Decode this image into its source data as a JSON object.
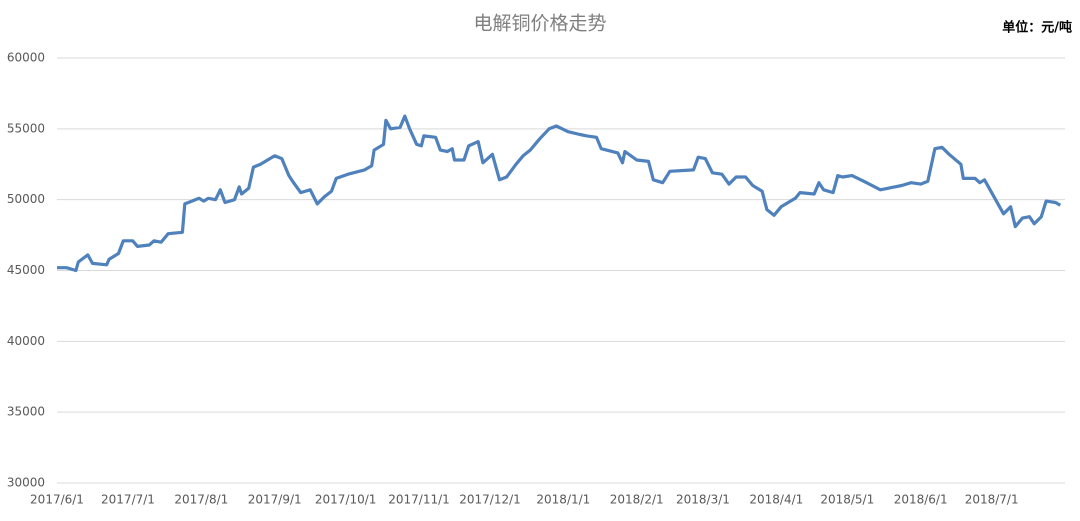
{
  "chart_data": {
    "type": "line",
    "title": "电解铜价格走势",
    "annotation": "单位：元/吨",
    "x": [
      "2017/6/1",
      "2017/6/5",
      "2017/6/9",
      "2017/6/10",
      "2017/6/14",
      "2017/6/16",
      "2017/6/22",
      "2017/6/23",
      "2017/6/27",
      "2017/6/29",
      "2017/7/3",
      "2017/7/5",
      "2017/7/10",
      "2017/7/12",
      "2017/7/15",
      "2017/7/18",
      "2017/7/24",
      "2017/7/25",
      "2017/7/28",
      "2017/7/31",
      "2017/8/2",
      "2017/8/4",
      "2017/8/7",
      "2017/8/9",
      "2017/8/11",
      "2017/8/15",
      "2017/8/17",
      "2017/8/18",
      "2017/8/21",
      "2017/8/23",
      "2017/8/26",
      "2017/8/29",
      "2017/9/1",
      "2017/9/4",
      "2017/9/7",
      "2017/9/9",
      "2017/9/12",
      "2017/9/16",
      "2017/9/19",
      "2017/9/22",
      "2017/9/25",
      "2017/9/27",
      "2017/10/2",
      "2017/10/9",
      "2017/10/12",
      "2017/10/13",
      "2017/10/17",
      "2017/10/18",
      "2017/10/20",
      "2017/10/24",
      "2017/10/26",
      "2017/10/28",
      "2017/10/31",
      "2017/11/2",
      "2017/11/3",
      "2017/11/8",
      "2017/11/10",
      "2017/11/13",
      "2017/11/15",
      "2017/11/16",
      "2017/11/20",
      "2017/11/22",
      "2017/11/26",
      "2017/11/28",
      "2017/12/2",
      "2017/12/5",
      "2017/12/8",
      "2017/12/12",
      "2017/12/15",
      "2017/12/18",
      "2017/12/22",
      "2017/12/26",
      "2017/12/29",
      "2018/1/3",
      "2018/1/8",
      "2018/1/11",
      "2018/1/15",
      "2018/1/17",
      "2018/1/24",
      "2018/1/26",
      "2018/1/27",
      "2018/2/1",
      "2018/2/6",
      "2018/2/8",
      "2018/2/12",
      "2018/2/15",
      "2018/2/25",
      "2018/2/27",
      "2018/3/2",
      "2018/3/5",
      "2018/3/9",
      "2018/3/12",
      "2018/3/15",
      "2018/3/19",
      "2018/3/22",
      "2018/3/26",
      "2018/3/28",
      "2018/3/31",
      "2018/4/3",
      "2018/4/9",
      "2018/4/11",
      "2018/4/17",
      "2018/4/19",
      "2018/4/21",
      "2018/4/25",
      "2018/4/27",
      "2018/4/29",
      "2018/5/3",
      "2018/5/8",
      "2018/5/15",
      "2018/5/21",
      "2018/5/24",
      "2018/5/28",
      "2018/6/1",
      "2018/6/4",
      "2018/6/7",
      "2018/6/10",
      "2018/6/13",
      "2018/6/18",
      "2018/6/19",
      "2018/6/24",
      "2018/6/26",
      "2018/6/28",
      "2018/7/6",
      "2018/7/9",
      "2018/7/11",
      "2018/7/14",
      "2018/7/17",
      "2018/7/19",
      "2018/7/22",
      "2018/7/24",
      "2018/7/28",
      "2018/7/30"
    ],
    "values": [
      45200,
      45200,
      45000,
      45600,
      46100,
      45500,
      45400,
      45800,
      46200,
      47100,
      47100,
      46700,
      46800,
      47100,
      47000,
      47600,
      47700,
      49700,
      49900,
      50100,
      49900,
      50100,
      50000,
      50700,
      49800,
      50000,
      50900,
      50400,
      50800,
      52300,
      52500,
      52800,
      53100,
      52900,
      51700,
      51200,
      50500,
      50700,
      49700,
      50200,
      50600,
      51500,
      51800,
      52100,
      52400,
      53500,
      53900,
      55600,
      55000,
      55100,
      55900,
      55000,
      53900,
      53800,
      54500,
      54400,
      53500,
      53400,
      53600,
      52800,
      52800,
      53800,
      54100,
      52600,
      53200,
      51400,
      51600,
      52500,
      53100,
      53500,
      54300,
      55000,
      55200,
      54800,
      54600,
      54500,
      54400,
      53600,
      53300,
      52600,
      53400,
      52800,
      52700,
      51400,
      51200,
      52000,
      52100,
      53000,
      52900,
      51900,
      51800,
      51100,
      51600,
      51600,
      51000,
      50600,
      49300,
      48900,
      49500,
      50100,
      50500,
      50400,
      51200,
      50700,
      50500,
      51700,
      51600,
      51700,
      51300,
      50700,
      50900,
      51000,
      51200,
      51100,
      51300,
      53600,
      53700,
      53200,
      52500,
      51500,
      51500,
      51200,
      51400,
      49000,
      49500,
      48100,
      48700,
      48800,
      48300,
      48800,
      49900,
      49800,
      49600
    ],
    "color": "#4f81bd",
    "xlim": [
      "2017/6/1",
      "2018/8/1"
    ],
    "xticks": [
      "2017/6/1",
      "2017/7/1",
      "2017/8/1",
      "2017/9/1",
      "2017/10/1",
      "2017/11/1",
      "2017/12/1",
      "2018/1/1",
      "2018/2/1",
      "2018/3/1",
      "2018/4/1",
      "2018/5/1",
      "2018/6/1",
      "2018/7/1"
    ],
    "ylim": [
      30000,
      60000
    ],
    "yticks": [
      30000,
      35000,
      40000,
      45000,
      50000,
      55000,
      60000
    ],
    "grid": true
  }
}
